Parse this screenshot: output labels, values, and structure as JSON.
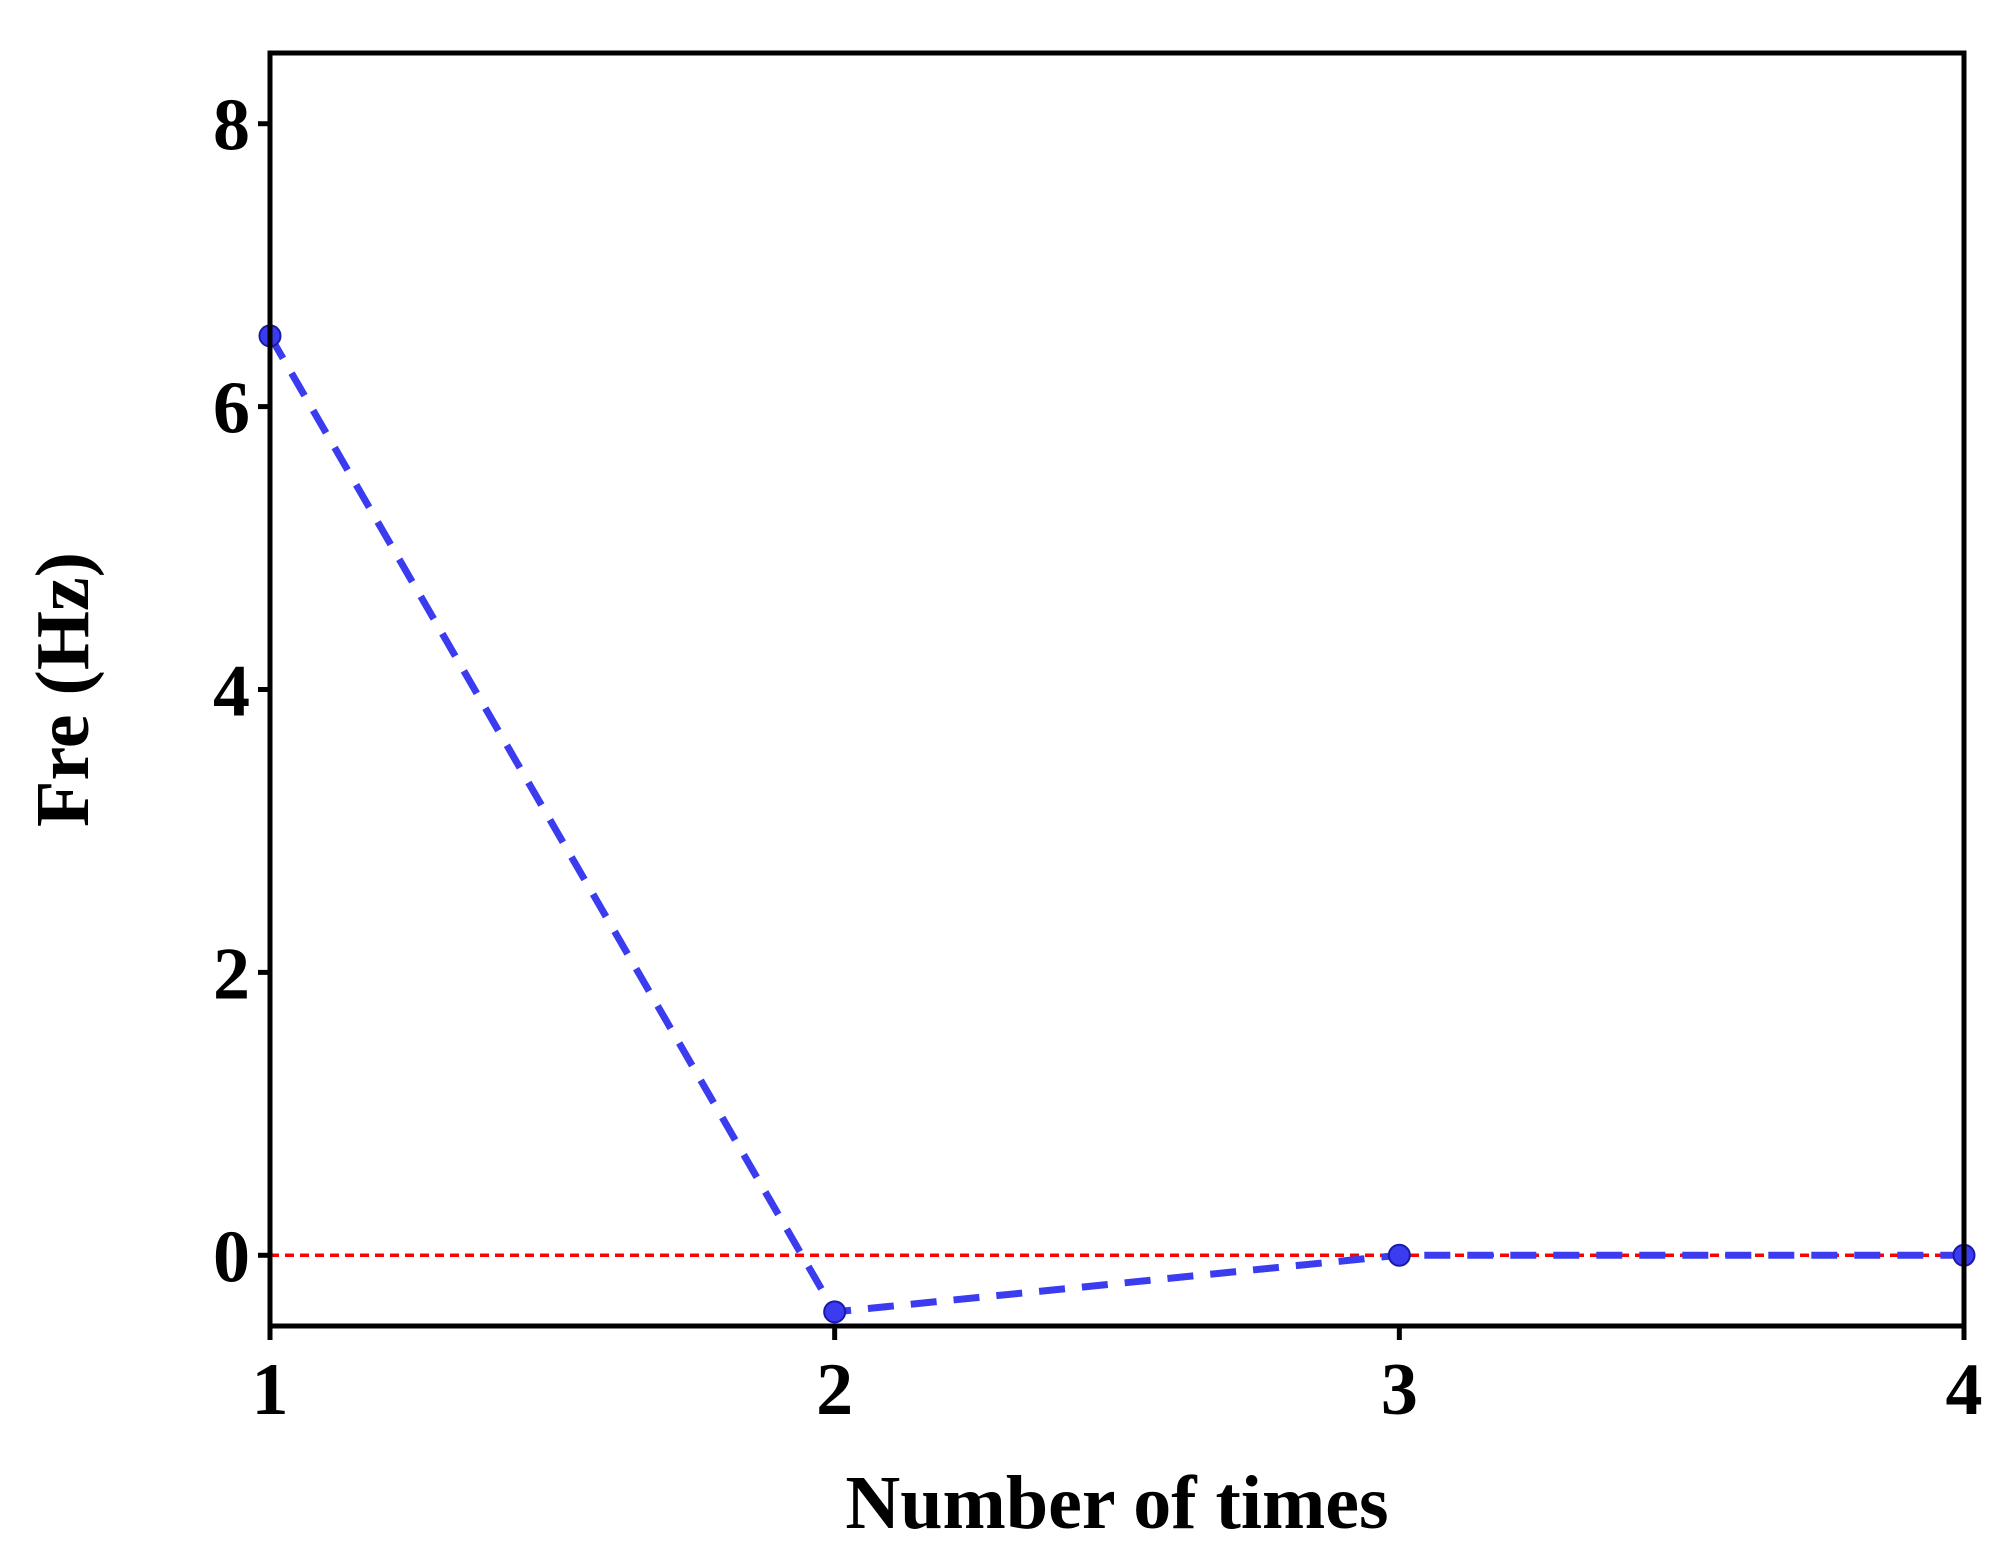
{
  "chart_data": {
    "type": "line",
    "title": "",
    "xlabel": "Number of times",
    "ylabel": "Fre (Hz)",
    "xlim": [
      1,
      4
    ],
    "ylim": [
      -0.5,
      8.5
    ],
    "xticks": [
      1,
      2,
      3,
      4
    ],
    "yticks": [
      0,
      2,
      4,
      6,
      8
    ],
    "grid": false,
    "series": [
      {
        "x": [
          1,
          2,
          3,
          4
        ],
        "values": [
          6.5,
          -0.4,
          0.0,
          0.0
        ],
        "color": "#3b3bf0",
        "line_style": "dashed",
        "marker": "circle"
      }
    ],
    "reference_lines": [
      {
        "axis": "y",
        "value": 0,
        "color": "#ff0000",
        "line_style": "dotted"
      }
    ]
  }
}
